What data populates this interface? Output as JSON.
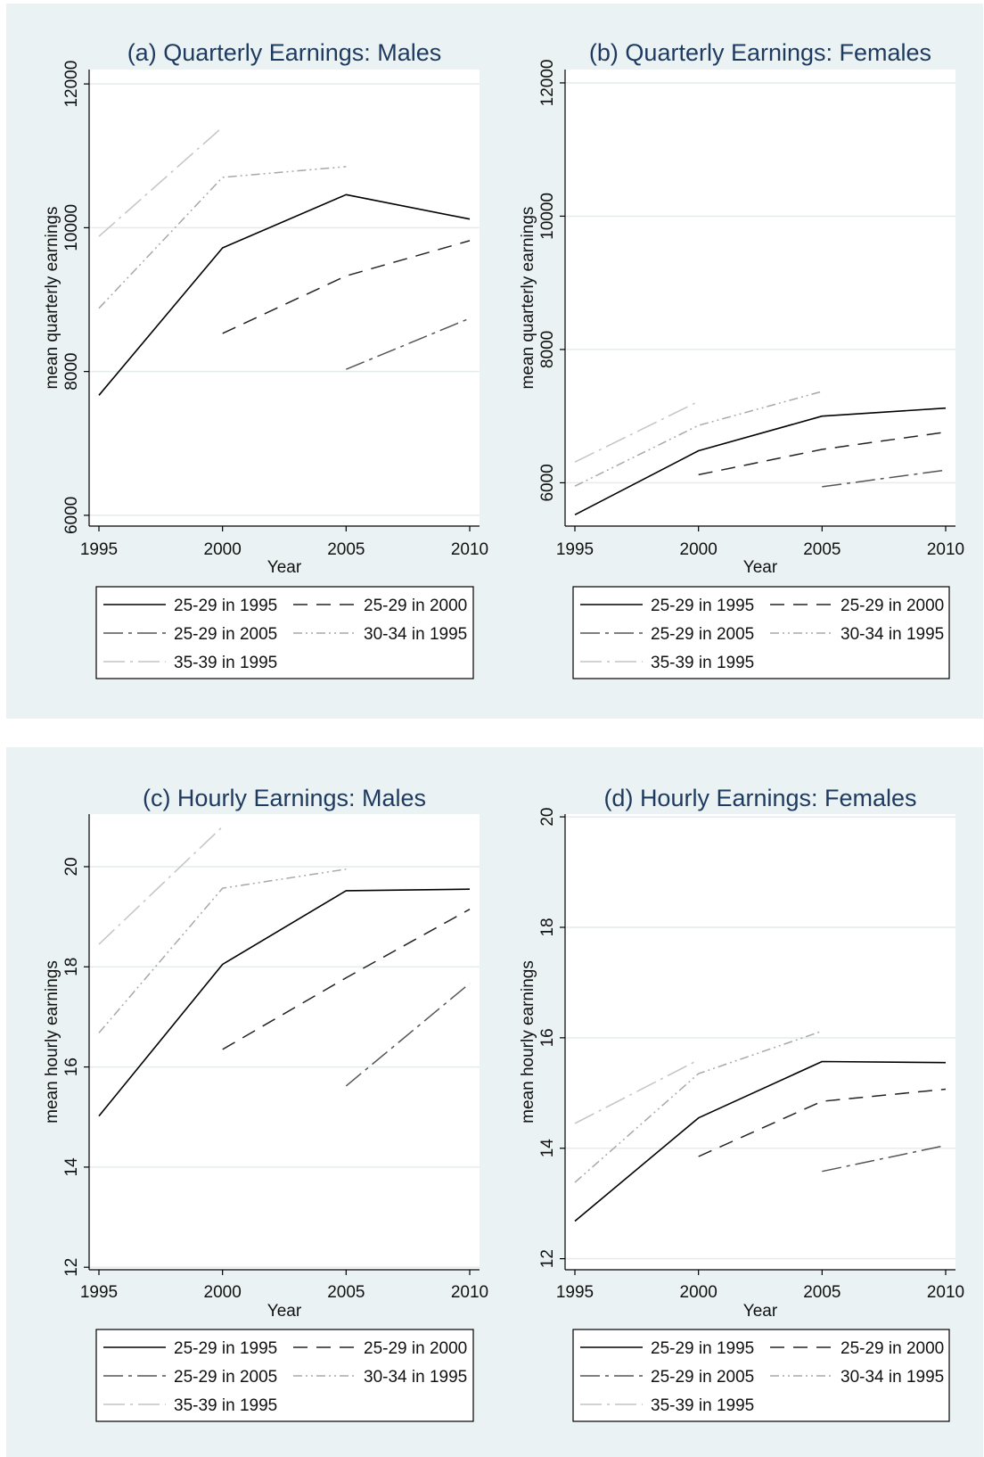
{
  "chart_data": [
    {
      "type": "line",
      "title": "(a) Quarterly Earnings: Males",
      "xlabel": "Year",
      "ylabel": "mean quarterly earnings",
      "x_ticks": [
        1995,
        2000,
        2005,
        2010
      ],
      "y_ticks": [
        6000,
        8000,
        10000,
        12000
      ],
      "xlim": [
        1995,
        2010
      ],
      "ylim": [
        5850,
        12200
      ],
      "grid": true,
      "legend_position": "bottom",
      "series": [
        {
          "name": "25-29 in 1995",
          "x": [
            1995,
            2000,
            2005,
            2010
          ],
          "values": [
            7670,
            9720,
            10460,
            10120
          ]
        },
        {
          "name": "25-29 in 2000",
          "x": [
            2000,
            2005,
            2010
          ],
          "values": [
            8530,
            9330,
            9820
          ]
        },
        {
          "name": "25-29 in 2005",
          "x": [
            2005,
            2010
          ],
          "values": [
            8030,
            8740
          ]
        },
        {
          "name": "30-34 in 1995",
          "x": [
            1995,
            2000,
            2005
          ],
          "values": [
            8880,
            10700,
            10850
          ]
        },
        {
          "name": "35-39 in 1995",
          "x": [
            1995,
            2000
          ],
          "values": [
            9880,
            11400
          ]
        }
      ]
    },
    {
      "type": "line",
      "title": "(b) Quarterly Earnings: Females",
      "xlabel": "Year",
      "ylabel": "mean quarterly earnings",
      "x_ticks": [
        1995,
        2000,
        2005,
        2010
      ],
      "y_ticks": [
        6000,
        8000,
        10000,
        12000
      ],
      "xlim": [
        1995,
        2010
      ],
      "ylim": [
        5350,
        12200
      ],
      "grid": true,
      "legend_position": "bottom",
      "series": [
        {
          "name": "25-29 in 1995",
          "x": [
            1995,
            2000,
            2005,
            2010
          ],
          "values": [
            5520,
            6480,
            7000,
            7120
          ]
        },
        {
          "name": "25-29 in 2000",
          "x": [
            2000,
            2005,
            2010
          ],
          "values": [
            6120,
            6500,
            6760
          ]
        },
        {
          "name": "25-29 in 2005",
          "x": [
            2005,
            2010
          ],
          "values": [
            5940,
            6190
          ]
        },
        {
          "name": "30-34 in 1995",
          "x": [
            1995,
            2000,
            2005
          ],
          "values": [
            5950,
            6860,
            7370
          ]
        },
        {
          "name": "35-39 in 1995",
          "x": [
            1995,
            2000
          ],
          "values": [
            6310,
            7220
          ]
        }
      ]
    },
    {
      "type": "line",
      "title": "(c) Hourly Earnings: Males",
      "xlabel": "Year",
      "ylabel": "mean hourly earnings",
      "x_ticks": [
        1995,
        2000,
        2005,
        2010
      ],
      "y_ticks": [
        12,
        14,
        16,
        18,
        20
      ],
      "xlim": [
        1995,
        2010
      ],
      "ylim": [
        11.95,
        21.05
      ],
      "grid": true,
      "legend_position": "bottom",
      "series": [
        {
          "name": "25-29 in 1995",
          "x": [
            1995,
            2000,
            2005,
            2010
          ],
          "values": [
            15.02,
            18.05,
            19.52,
            19.55
          ]
        },
        {
          "name": "25-29 in 2000",
          "x": [
            2000,
            2005,
            2010
          ],
          "values": [
            16.35,
            17.78,
            19.15
          ]
        },
        {
          "name": "25-29 in 2005",
          "x": [
            2005,
            2010
          ],
          "values": [
            15.62,
            17.67
          ]
        },
        {
          "name": "30-34 in 1995",
          "x": [
            1995,
            2000,
            2005
          ],
          "values": [
            16.68,
            19.57,
            19.95
          ]
        },
        {
          "name": "35-39 in 1995",
          "x": [
            1995,
            2000
          ],
          "values": [
            18.45,
            20.8
          ]
        }
      ]
    },
    {
      "type": "line",
      "title": "(d) Hourly Earnings: Females",
      "xlabel": "Year",
      "ylabel": "mean hourly earnings",
      "x_ticks": [
        1995,
        2000,
        2005,
        2010
      ],
      "y_ticks": [
        12,
        14,
        16,
        18,
        20
      ],
      "xlim": [
        1995,
        2010
      ],
      "ylim": [
        11.8,
        20.05
      ],
      "grid": true,
      "legend_position": "bottom",
      "series": [
        {
          "name": "25-29 in 1995",
          "x": [
            1995,
            2000,
            2005,
            2010
          ],
          "values": [
            12.68,
            14.55,
            15.57,
            15.55
          ]
        },
        {
          "name": "25-29 in 2000",
          "x": [
            2000,
            2005,
            2010
          ],
          "values": [
            13.85,
            14.85,
            15.07
          ]
        },
        {
          "name": "25-29 in 2005",
          "x": [
            2005,
            2010
          ],
          "values": [
            13.58,
            14.05
          ]
        },
        {
          "name": "30-34 in 1995",
          "x": [
            1995,
            2000,
            2005
          ],
          "values": [
            13.38,
            15.35,
            16.12
          ]
        },
        {
          "name": "35-39 in 1995",
          "x": [
            1995,
            2000
          ],
          "values": [
            14.45,
            15.6
          ]
        }
      ]
    }
  ]
}
